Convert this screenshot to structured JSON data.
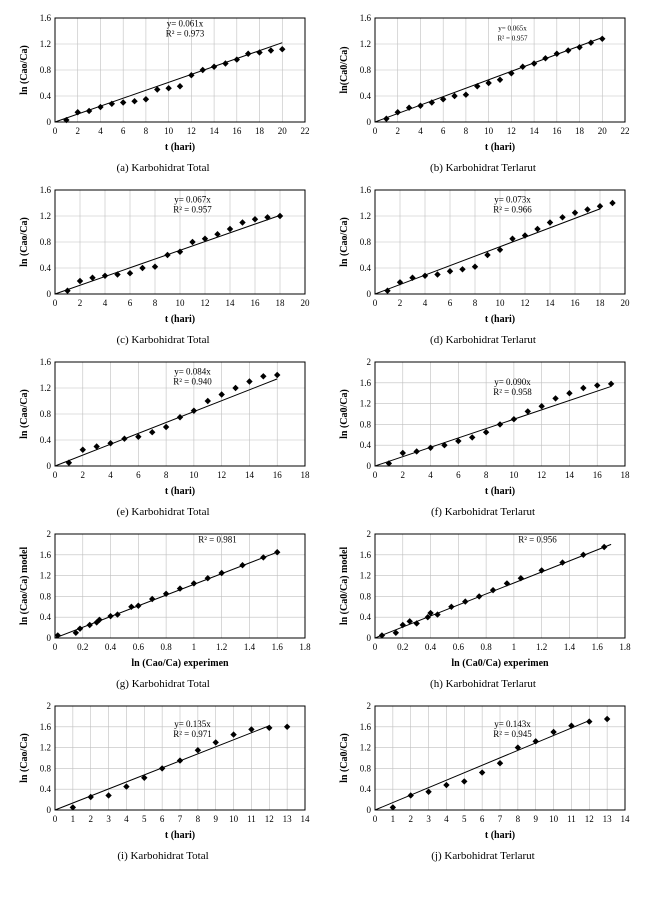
{
  "colors": {
    "background": "#ffffff",
    "axis": "#000000",
    "grid": "#bfbfbf",
    "marker": "#000000",
    "line": "#000000"
  },
  "charts": [
    {
      "id": "a",
      "caption": "(a) Karbohidrat Total",
      "xlabel": "t (hari)",
      "ylabel": "ln (Cao/Ca)",
      "equation": "y= 0.061x",
      "r2": "R² = 0.973",
      "xmin": 0,
      "xmax": 22,
      "xtick_step": 2,
      "ymin": 0,
      "ymax": 1.6,
      "ytick_step": 0.4,
      "eq_x": 0.52,
      "eq_y": 0.92,
      "data": [
        [
          1,
          0.03
        ],
        [
          2,
          0.15
        ],
        [
          3,
          0.17
        ],
        [
          4,
          0.23
        ],
        [
          5,
          0.28
        ],
        [
          6,
          0.3
        ],
        [
          7,
          0.32
        ],
        [
          8,
          0.35
        ],
        [
          9,
          0.5
        ],
        [
          10,
          0.52
        ],
        [
          11,
          0.55
        ],
        [
          12,
          0.72
        ],
        [
          13,
          0.8
        ],
        [
          14,
          0.85
        ],
        [
          15,
          0.9
        ],
        [
          16,
          0.96
        ],
        [
          17,
          1.05
        ],
        [
          18,
          1.07
        ],
        [
          19,
          1.1
        ],
        [
          20,
          1.12
        ]
      ],
      "fit": [
        [
          0,
          0
        ],
        [
          20,
          1.22
        ]
      ]
    },
    {
      "id": "b",
      "caption": "(b) Karbohidrat Terlarut",
      "xlabel": "t (hari)",
      "ylabel": "ln(Ca0/Ca)",
      "equation": "y= 0.065x",
      "r2": "R² = 0.957",
      "xmin": 0,
      "xmax": 22,
      "xtick_step": 2,
      "ymin": 0,
      "ymax": 1.6,
      "ytick_step": 0.4,
      "eq_x": 0.55,
      "eq_y": 0.88,
      "small": true,
      "data": [
        [
          1,
          0.05
        ],
        [
          2,
          0.15
        ],
        [
          3,
          0.22
        ],
        [
          4,
          0.25
        ],
        [
          5,
          0.3
        ],
        [
          6,
          0.35
        ],
        [
          7,
          0.4
        ],
        [
          8,
          0.42
        ],
        [
          9,
          0.55
        ],
        [
          10,
          0.6
        ],
        [
          11,
          0.65
        ],
        [
          12,
          0.75
        ],
        [
          13,
          0.85
        ],
        [
          14,
          0.9
        ],
        [
          15,
          0.98
        ],
        [
          16,
          1.05
        ],
        [
          17,
          1.1
        ],
        [
          18,
          1.15
        ],
        [
          19,
          1.22
        ],
        [
          20,
          1.28
        ]
      ],
      "fit": [
        [
          0,
          0
        ],
        [
          20,
          1.3
        ]
      ]
    },
    {
      "id": "c",
      "caption": "(c)  Karbohidrat Total",
      "xlabel": "t (hari)",
      "ylabel": "ln (Cao/Ca)",
      "equation": "y= 0.067x",
      "r2": "R² = 0.957",
      "xmin": 0,
      "xmax": 20,
      "xtick_step": 2,
      "ymin": 0,
      "ymax": 1.6,
      "ytick_step": 0.4,
      "eq_x": 0.55,
      "eq_y": 0.88,
      "data": [
        [
          1,
          0.05
        ],
        [
          2,
          0.2
        ],
        [
          3,
          0.25
        ],
        [
          4,
          0.28
        ],
        [
          5,
          0.3
        ],
        [
          6,
          0.32
        ],
        [
          7,
          0.4
        ],
        [
          8,
          0.42
        ],
        [
          9,
          0.6
        ],
        [
          10,
          0.65
        ],
        [
          11,
          0.8
        ],
        [
          12,
          0.85
        ],
        [
          13,
          0.92
        ],
        [
          14,
          1.0
        ],
        [
          15,
          1.1
        ],
        [
          16,
          1.15
        ],
        [
          17,
          1.18
        ],
        [
          18,
          1.2
        ]
      ],
      "fit": [
        [
          0,
          0
        ],
        [
          18,
          1.21
        ]
      ]
    },
    {
      "id": "d",
      "caption": "(d) Karbohidrat Terlarut",
      "xlabel": "t (hari)",
      "ylabel": "ln (Cao/Ca)",
      "equation": "y= 0.073x",
      "r2": "R² = 0.966",
      "xmin": 0,
      "xmax": 20,
      "xtick_step": 2,
      "ymin": 0,
      "ymax": 1.6,
      "ytick_step": 0.4,
      "eq_x": 0.55,
      "eq_y": 0.88,
      "data": [
        [
          1,
          0.05
        ],
        [
          2,
          0.18
        ],
        [
          3,
          0.25
        ],
        [
          4,
          0.28
        ],
        [
          5,
          0.3
        ],
        [
          6,
          0.35
        ],
        [
          7,
          0.38
        ],
        [
          8,
          0.42
        ],
        [
          9,
          0.6
        ],
        [
          10,
          0.68
        ],
        [
          11,
          0.85
        ],
        [
          12,
          0.9
        ],
        [
          13,
          1.0
        ],
        [
          14,
          1.1
        ],
        [
          15,
          1.18
        ],
        [
          16,
          1.25
        ],
        [
          17,
          1.3
        ],
        [
          18,
          1.35
        ],
        [
          19,
          1.4
        ]
      ],
      "fit": [
        [
          0,
          0
        ],
        [
          18,
          1.31
        ]
      ]
    },
    {
      "id": "e",
      "caption": "(e) Karbohidrat Total",
      "xlabel": "t (hari)",
      "ylabel": "ln (Cao/Ca)",
      "equation": "y= 0.084x",
      "r2": "R² = 0.940",
      "xmin": 0,
      "xmax": 18,
      "xtick_step": 2,
      "ymin": 0,
      "ymax": 1.6,
      "ytick_step": 0.4,
      "eq_x": 0.55,
      "eq_y": 0.88,
      "data": [
        [
          1,
          0.05
        ],
        [
          2,
          0.25
        ],
        [
          3,
          0.3
        ],
        [
          4,
          0.35
        ],
        [
          5,
          0.42
        ],
        [
          6,
          0.45
        ],
        [
          7,
          0.52
        ],
        [
          8,
          0.6
        ],
        [
          9,
          0.75
        ],
        [
          10,
          0.85
        ],
        [
          11,
          1.0
        ],
        [
          12,
          1.1
        ],
        [
          13,
          1.2
        ],
        [
          14,
          1.3
        ],
        [
          15,
          1.38
        ],
        [
          16,
          1.4
        ]
      ],
      "fit": [
        [
          0,
          0
        ],
        [
          16,
          1.34
        ]
      ]
    },
    {
      "id": "f",
      "caption": "(f) Karbohidrat Terlarut",
      "xlabel": "t (hari)",
      "ylabel": "ln (Ca0/Ca)",
      "equation": "y= 0.090x",
      "r2": "R² = 0.958",
      "xmin": 0,
      "xmax": 18,
      "xtick_step": 2,
      "ymin": 0,
      "ymax": 2.0,
      "ytick_step": 0.4,
      "eq_x": 0.55,
      "eq_y": 0.78,
      "data": [
        [
          1,
          0.05
        ],
        [
          2,
          0.25
        ],
        [
          3,
          0.28
        ],
        [
          4,
          0.35
        ],
        [
          5,
          0.4
        ],
        [
          6,
          0.48
        ],
        [
          7,
          0.55
        ],
        [
          8,
          0.65
        ],
        [
          9,
          0.8
        ],
        [
          10,
          0.9
        ],
        [
          11,
          1.05
        ],
        [
          12,
          1.15
        ],
        [
          13,
          1.3
        ],
        [
          14,
          1.4
        ],
        [
          15,
          1.5
        ],
        [
          16,
          1.55
        ],
        [
          17,
          1.58
        ]
      ],
      "fit": [
        [
          0,
          0
        ],
        [
          17,
          1.53
        ]
      ]
    },
    {
      "id": "g",
      "caption": "(g) Karbohidrat Total",
      "xlabel": "ln (Cao/Ca) experimen",
      "ylabel": "ln (Cao/Ca) model",
      "equation": "",
      "r2": "R² = 0.981",
      "xmin": 0,
      "xmax": 1.8,
      "xtick_step": 0.2,
      "ymin": 0,
      "ymax": 2.0,
      "ytick_step": 0.4,
      "eq_x": 0.65,
      "eq_y": 0.92,
      "data": [
        [
          0.02,
          0.05
        ],
        [
          0.15,
          0.1
        ],
        [
          0.18,
          0.18
        ],
        [
          0.25,
          0.25
        ],
        [
          0.3,
          0.3
        ],
        [
          0.32,
          0.35
        ],
        [
          0.4,
          0.42
        ],
        [
          0.45,
          0.45
        ],
        [
          0.55,
          0.6
        ],
        [
          0.6,
          0.62
        ],
        [
          0.7,
          0.75
        ],
        [
          0.8,
          0.85
        ],
        [
          0.9,
          0.95
        ],
        [
          1.0,
          1.05
        ],
        [
          1.1,
          1.15
        ],
        [
          1.2,
          1.25
        ],
        [
          1.35,
          1.4
        ],
        [
          1.5,
          1.55
        ],
        [
          1.6,
          1.65
        ]
      ],
      "fit": [
        [
          0,
          0
        ],
        [
          1.6,
          1.65
        ]
      ]
    },
    {
      "id": "h",
      "caption": "(h) Karbohidrat Terlarut",
      "xlabel": "ln (Ca0/Ca) experimen",
      "ylabel": "ln (Ca0/Ca) model",
      "equation": "",
      "r2": "R² = 0.956",
      "xmin": 0,
      "xmax": 1.8,
      "xtick_step": 0.2,
      "ymin": 0,
      "ymax": 2.0,
      "ytick_step": 0.4,
      "eq_x": 0.65,
      "eq_y": 0.92,
      "data": [
        [
          0.05,
          0.05
        ],
        [
          0.15,
          0.1
        ],
        [
          0.2,
          0.25
        ],
        [
          0.25,
          0.32
        ],
        [
          0.3,
          0.28
        ],
        [
          0.38,
          0.4
        ],
        [
          0.4,
          0.48
        ],
        [
          0.45,
          0.45
        ],
        [
          0.55,
          0.6
        ],
        [
          0.65,
          0.7
        ],
        [
          0.75,
          0.8
        ],
        [
          0.85,
          0.92
        ],
        [
          0.95,
          1.05
        ],
        [
          1.05,
          1.15
        ],
        [
          1.2,
          1.3
        ],
        [
          1.35,
          1.45
        ],
        [
          1.5,
          1.6
        ],
        [
          1.65,
          1.75
        ]
      ],
      "fit": [
        [
          0,
          0
        ],
        [
          1.7,
          1.8
        ]
      ]
    },
    {
      "id": "i",
      "caption": "(i) Karbohidrat Total",
      "xlabel": "t (hari)",
      "ylabel": "ln (Cao/Ca)",
      "equation": "y= 0.135x",
      "r2": "R² = 0.971",
      "xmin": 0,
      "xmax": 14,
      "xtick_step": 1,
      "ymin": 0,
      "ymax": 2.0,
      "ytick_step": 0.4,
      "eq_x": 0.55,
      "eq_y": 0.8,
      "data": [
        [
          1,
          0.05
        ],
        [
          2,
          0.25
        ],
        [
          3,
          0.28
        ],
        [
          4,
          0.45
        ],
        [
          5,
          0.62
        ],
        [
          6,
          0.8
        ],
        [
          7,
          0.95
        ],
        [
          8,
          1.15
        ],
        [
          9,
          1.3
        ],
        [
          10,
          1.45
        ],
        [
          11,
          1.55
        ],
        [
          12,
          1.58
        ],
        [
          13,
          1.6
        ]
      ],
      "fit": [
        [
          0,
          0
        ],
        [
          12,
          1.62
        ]
      ]
    },
    {
      "id": "j",
      "caption": "(j) Karbohidrat Terlarut",
      "xlabel": "t (hari)",
      "ylabel": "ln (Ca0/Ca)",
      "equation": "y= 0.143x",
      "r2": "R² = 0.945",
      "xmin": 0,
      "xmax": 14,
      "xtick_step": 1,
      "ymin": 0,
      "ymax": 2.0,
      "ytick_step": 0.4,
      "eq_x": 0.55,
      "eq_y": 0.8,
      "data": [
        [
          1,
          0.05
        ],
        [
          2,
          0.28
        ],
        [
          3,
          0.35
        ],
        [
          4,
          0.48
        ],
        [
          5,
          0.55
        ],
        [
          6,
          0.72
        ],
        [
          7,
          0.9
        ],
        [
          8,
          1.2
        ],
        [
          9,
          1.32
        ],
        [
          10,
          1.5
        ],
        [
          11,
          1.62
        ],
        [
          12,
          1.7
        ],
        [
          13,
          1.75
        ]
      ],
      "fit": [
        [
          0,
          0
        ],
        [
          12,
          1.72
        ]
      ]
    }
  ]
}
